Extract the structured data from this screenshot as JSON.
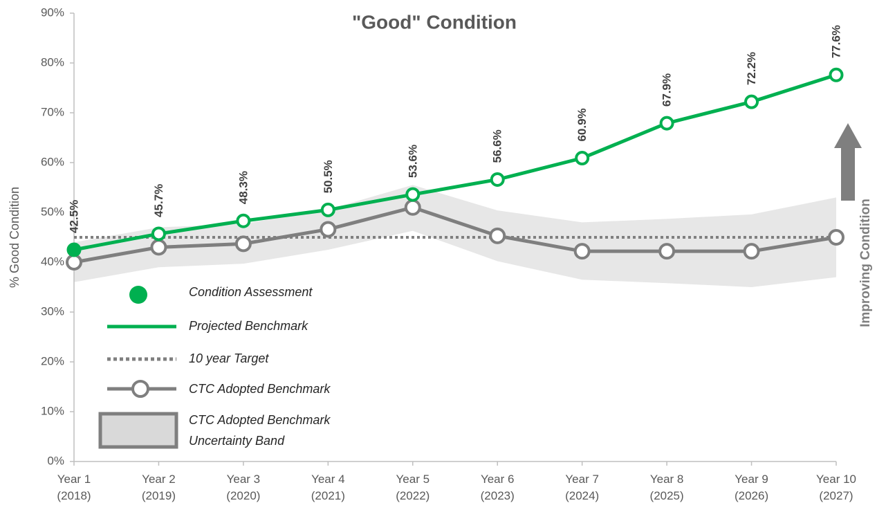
{
  "chart_data": {
    "type": "line",
    "title": "\"Good\" Condition",
    "y_label": "% Good Condition",
    "annotation": "Improving Condition",
    "categories": [
      "Year 1 (2018)",
      "Year 2 (2019)",
      "Year 3 (2020)",
      "Year 4 (2021)",
      "Year 5 (2022)",
      "Year 6 (2023)",
      "Year 7 (2024)",
      "Year 8 (2025)",
      "Year 9 (2026)",
      "Year 10 (2027)"
    ],
    "ylim": [
      0,
      90
    ],
    "yticks": [
      {
        "value": 0,
        "label": "0%"
      },
      {
        "value": 10,
        "label": "10%"
      },
      {
        "value": 20,
        "label": "20%"
      },
      {
        "value": 30,
        "label": "30%"
      },
      {
        "value": 40,
        "label": "40%"
      },
      {
        "value": 50,
        "label": "50%"
      },
      {
        "value": 60,
        "label": "60%"
      },
      {
        "value": 70,
        "label": "70%"
      },
      {
        "value": 80,
        "label": "80%"
      },
      {
        "value": 90,
        "label": "90%"
      }
    ],
    "band": {
      "name": "CTC Adopted Benchmark Uncertainty Band",
      "color": "#e7e7e7",
      "lower": [
        36,
        39,
        39.7,
        42.5,
        46.3,
        40.2,
        36.5,
        35.8,
        35,
        37
      ],
      "upper": [
        44,
        47,
        47.7,
        50.6,
        55.5,
        50.4,
        48,
        48.7,
        49.6,
        53
      ]
    },
    "series": [
      {
        "name": "Condition Assessment",
        "color": "#00b050",
        "values": [
          42.5,
          null,
          null,
          null,
          null,
          null,
          null,
          null,
          null,
          null
        ]
      },
      {
        "name": "Projected Benchmark",
        "color": "#00b050",
        "values": [
          42.5,
          45.7,
          48.3,
          50.5,
          53.6,
          56.6,
          60.9,
          67.9,
          72.2,
          77.6
        ],
        "value_labels": [
          "42.5%",
          "45.7%",
          "48.3%",
          "50.5%",
          "53.6%",
          "56.6%",
          "60.9%",
          "67.9%",
          "72.2%",
          "77.6%"
        ]
      },
      {
        "name": "10 year Target",
        "color": "#7f7f7f",
        "dashed": true,
        "values": [
          45,
          45,
          45,
          45,
          45,
          45,
          45,
          45,
          45,
          45
        ]
      },
      {
        "name": "CTC Adopted Benchmark",
        "color": "#7f7f7f",
        "values": [
          40,
          43,
          43.7,
          46.6,
          51,
          45.3,
          42.2,
          42.2,
          42.2,
          45
        ]
      }
    ]
  }
}
